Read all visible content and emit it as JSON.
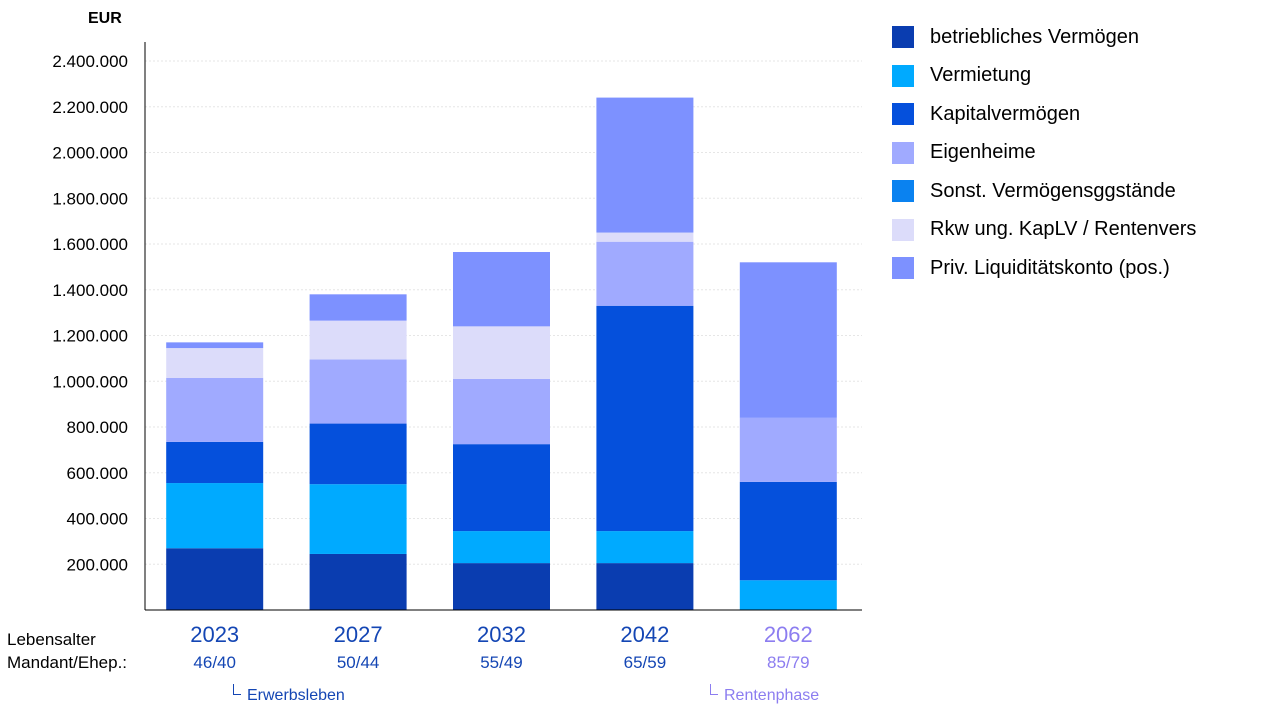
{
  "chart_data": {
    "type": "bar",
    "stacked": true,
    "ylabel": "EUR",
    "ylim": [
      0,
      2400000
    ],
    "yticks": [
      "200.000",
      "400.000",
      "600.000",
      "800.000",
      "1.000.000",
      "1.200.000",
      "1.400.000",
      "1.600.000",
      "1.800.000",
      "2.000.000",
      "2.200.000",
      "2.400.000"
    ],
    "ytick_values": [
      200000,
      400000,
      600000,
      800000,
      1000000,
      1200000,
      1400000,
      1600000,
      1800000,
      2000000,
      2200000,
      2400000
    ],
    "categories": [
      "2023",
      "2027",
      "2032",
      "2042",
      "2062"
    ],
    "ages": [
      "46/40",
      "50/44",
      "55/49",
      "65/59",
      "85/79"
    ],
    "category_phase": [
      "erwerb",
      "erwerb",
      "erwerb",
      "erwerb",
      "rente"
    ],
    "row_label_1": "Lebensalter",
    "row_label_2": "Mandant/Ehep.:",
    "grid": true,
    "legend_position": "right",
    "series": [
      {
        "name": "betriebliches Vermögen",
        "color": "#0a3db0",
        "values": [
          270000,
          245000,
          205000,
          205000,
          0
        ]
      },
      {
        "name": "Vermietung",
        "color": "#00aaff",
        "values": [
          285000,
          305000,
          140000,
          140000,
          130000
        ]
      },
      {
        "name": "Kapitalvermögen",
        "color": "#0550dc",
        "values": [
          180000,
          265000,
          380000,
          985000,
          430000
        ]
      },
      {
        "name": "Eigenheime",
        "color": "#a0aaff",
        "values": [
          280000,
          280000,
          285000,
          280000,
          280000
        ]
      },
      {
        "name": "Sonst. Vermögensggstände",
        "color": "#0a82f0",
        "values": [
          0,
          0,
          0,
          0,
          0
        ]
      },
      {
        "name": "Rkw ung. KapLV / Rentenvers",
        "color": "#dcdcfa",
        "values": [
          130000,
          170000,
          230000,
          40000,
          0
        ]
      },
      {
        "name": "Priv. Liquiditätskonto (pos.)",
        "color": "#7d91ff",
        "values": [
          25000,
          115000,
          325000,
          590000,
          680000
        ]
      }
    ]
  },
  "notes": {
    "erwerb": "Erwerbsleben",
    "rente": "Rentenphase"
  },
  "colors": {
    "erwerb_text": "#1446b4",
    "rente_text": "#8c7df0",
    "axis": "#000000",
    "grid": "#e6e6e6"
  }
}
